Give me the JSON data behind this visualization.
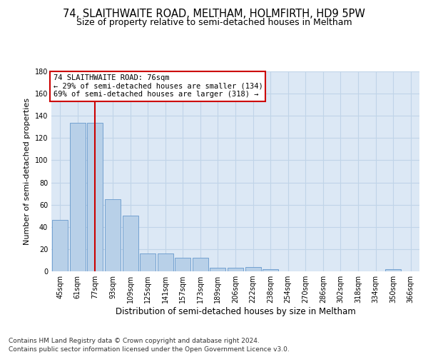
{
  "title": "74, SLAITHWAITE ROAD, MELTHAM, HOLMFIRTH, HD9 5PW",
  "subtitle": "Size of property relative to semi-detached houses in Meltham",
  "xlabel": "Distribution of semi-detached houses by size in Meltham",
  "ylabel": "Number of semi-detached properties",
  "categories": [
    "45sqm",
    "61sqm",
    "77sqm",
    "93sqm",
    "109sqm",
    "125sqm",
    "141sqm",
    "157sqm",
    "173sqm",
    "189sqm",
    "206sqm",
    "222sqm",
    "238sqm",
    "254sqm",
    "270sqm",
    "286sqm",
    "302sqm",
    "318sqm",
    "334sqm",
    "350sqm",
    "366sqm"
  ],
  "values": [
    46,
    134,
    134,
    65,
    50,
    16,
    16,
    12,
    12,
    3,
    3,
    4,
    2,
    0,
    0,
    0,
    0,
    0,
    0,
    2,
    0
  ],
  "bar_color": "#b8d0e8",
  "bar_edge_color": "#6699cc",
  "bar_edge_width": 0.6,
  "red_line_index": 2,
  "annotation_text": "74 SLAITHWAITE ROAD: 76sqm\n← 29% of semi-detached houses are smaller (134)\n69% of semi-detached houses are larger (318) →",
  "annotation_box_color": "#cc0000",
  "ylim": [
    0,
    180
  ],
  "yticks": [
    0,
    20,
    40,
    60,
    80,
    100,
    120,
    140,
    160,
    180
  ],
  "grid_color": "#c0d4e8",
  "plot_bg_color": "#dce8f5",
  "footer_line1": "Contains HM Land Registry data © Crown copyright and database right 2024.",
  "footer_line2": "Contains public sector information licensed under the Open Government Licence v3.0.",
  "title_fontsize": 10.5,
  "subtitle_fontsize": 9,
  "xlabel_fontsize": 8.5,
  "ylabel_fontsize": 8,
  "tick_fontsize": 7,
  "annotation_fontsize": 7.5,
  "footer_fontsize": 6.5
}
